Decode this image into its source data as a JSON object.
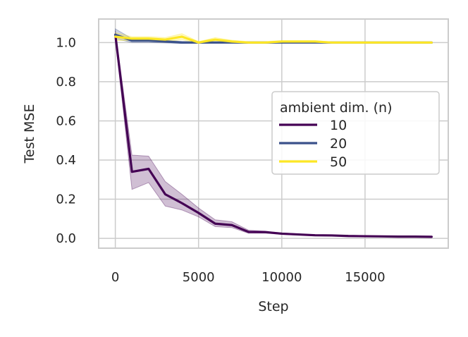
{
  "chart_data": {
    "type": "line",
    "xlabel": "Step",
    "ylabel": "Test MSE",
    "xlim": [
      -1000,
      20000
    ],
    "ylim": [
      -0.05,
      1.12
    ],
    "xticks": [
      0,
      5000,
      10000,
      15000
    ],
    "xtick_labels": [
      "0",
      "5000",
      "10000",
      "15000"
    ],
    "yticks": [
      0.0,
      0.2,
      0.4,
      0.6,
      0.8,
      1.0
    ],
    "ytick_labels": [
      "0.0",
      "0.2",
      "0.4",
      "0.6",
      "0.8",
      "1.0"
    ],
    "grid": true,
    "legend": {
      "title": "ambient dim. (n)",
      "placement": "center-right"
    },
    "x": [
      0,
      1000,
      2000,
      3000,
      4000,
      5000,
      6000,
      7000,
      8000,
      9000,
      10000,
      11000,
      12000,
      13000,
      14000,
      15000,
      16000,
      17000,
      18000,
      19000
    ],
    "series": [
      {
        "name": "10",
        "color": "#440154",
        "values": [
          1.04,
          0.34,
          0.355,
          0.225,
          0.18,
          0.13,
          0.075,
          0.068,
          0.033,
          0.032,
          0.024,
          0.02,
          0.016,
          0.015,
          0.012,
          0.011,
          0.01,
          0.009,
          0.009,
          0.008
        ],
        "band_low": [
          1.02,
          0.25,
          0.285,
          0.165,
          0.145,
          0.11,
          0.06,
          0.055,
          0.026,
          0.027,
          0.02,
          0.017,
          0.014,
          0.013,
          0.011,
          0.01,
          0.009,
          0.008,
          0.008,
          0.007
        ],
        "band_high": [
          1.06,
          0.425,
          0.42,
          0.29,
          0.225,
          0.155,
          0.095,
          0.085,
          0.042,
          0.037,
          0.028,
          0.023,
          0.018,
          0.017,
          0.013,
          0.012,
          0.011,
          0.01,
          0.01,
          0.009
        ]
      },
      {
        "name": "20",
        "color": "#3b528b",
        "values": [
          1.04,
          1.01,
          1.01,
          1.005,
          1.0,
          1.0,
          1.0,
          1.0,
          1.0,
          1.0,
          1.0,
          1.0,
          1.0,
          1.0,
          1.0,
          1.0,
          1.0,
          1.0,
          1.0,
          1.0
        ],
        "band_low": [
          1.02,
          1.0,
          1.0,
          0.998,
          0.995,
          0.996,
          0.996,
          0.997,
          0.997,
          0.997,
          0.997,
          0.998,
          0.998,
          0.998,
          0.998,
          0.998,
          0.998,
          0.998,
          0.998,
          0.998
        ],
        "band_high": [
          1.07,
          1.02,
          1.02,
          1.012,
          1.006,
          1.004,
          1.004,
          1.003,
          1.003,
          1.003,
          1.003,
          1.002,
          1.002,
          1.002,
          1.002,
          1.002,
          1.002,
          1.002,
          1.002,
          1.002
        ]
      },
      {
        "name": "50",
        "color": "#fde725",
        "values": [
          1.03,
          1.02,
          1.02,
          1.015,
          1.03,
          1.0,
          1.015,
          1.005,
          1.0,
          1.0,
          1.005,
          1.005,
          1.005,
          1.0,
          1.0,
          1.0,
          1.0,
          1.0,
          1.0,
          1.0
        ],
        "band_low": [
          1.01,
          1.01,
          1.01,
          1.005,
          1.015,
          0.995,
          1.005,
          0.998,
          0.995,
          0.995,
          1.0,
          1.0,
          1.0,
          0.997,
          0.997,
          0.997,
          0.997,
          0.997,
          0.997,
          0.997
        ],
        "band_high": [
          1.05,
          1.03,
          1.03,
          1.025,
          1.045,
          1.005,
          1.025,
          1.012,
          1.005,
          1.005,
          1.01,
          1.01,
          1.01,
          1.003,
          1.003,
          1.003,
          1.003,
          1.003,
          1.003,
          1.003
        ]
      }
    ]
  }
}
